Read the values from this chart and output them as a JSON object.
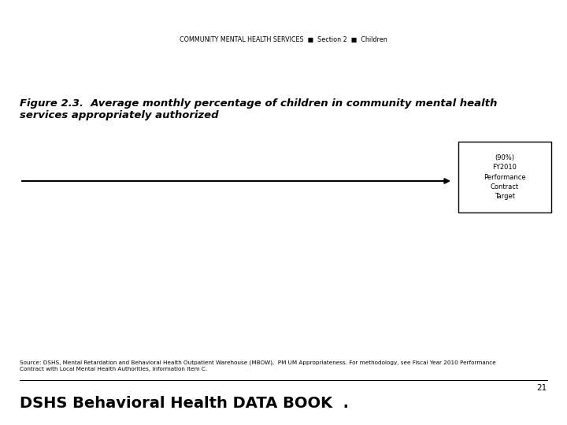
{
  "header_text": "COMMUNITY MENTAL HEALTH SERVICES  ■  Section 2  ■  Children",
  "header_bg": "#c8c8c8",
  "header_border": "#888888",
  "figure_title_italic": "Figure 2.3.",
  "figure_title_rest": "  Average monthly percentage of children in community mental health\nservices appropriately authorized",
  "arrow_label": "(90%)\nFY2010\nPerformance\nContract\nTarget",
  "source_text": "Source: DSHS, Mental Retardation and Behavioral Health Outpatient Warehouse (MBOW),  PM UM Appropriateness. For methodology, see Fiscal Year 2010 Performance\nContract with Local Mental Health Authorities, Information Item C.",
  "footer_text": "DSHS Behavioral Health DATA BOOK  .",
  "page_number": "21",
  "bg_color": "#ffffff"
}
